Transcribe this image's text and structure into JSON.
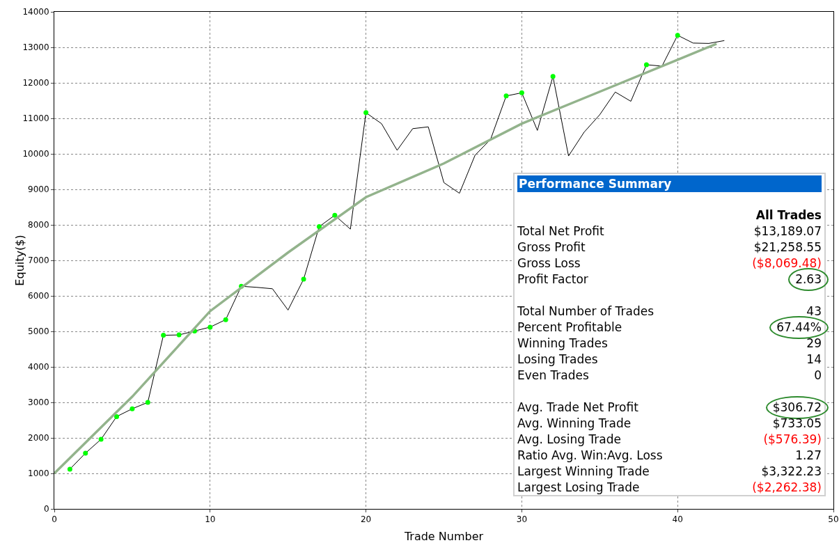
{
  "chart_data": {
    "type": "line",
    "xlabel": "Trade Number",
    "ylabel": "Equity($)",
    "xlim": [
      0,
      50
    ],
    "xticks": [
      0,
      10,
      20,
      30,
      40,
      50
    ],
    "ylim": [
      0,
      14000
    ],
    "yticks": [
      0,
      1000,
      2000,
      3000,
      4000,
      5000,
      6000,
      7000,
      8000,
      9000,
      10000,
      11000,
      12000,
      13000,
      14000
    ],
    "grid": true,
    "line_style": "solid",
    "series": [
      {
        "color": "#000000",
        "marker": "none",
        "x": [
          1,
          2,
          3,
          4,
          5,
          6,
          7,
          8,
          9,
          10,
          11,
          12,
          13,
          14,
          15,
          16,
          17,
          18,
          19,
          20,
          21,
          22,
          23,
          24,
          25,
          26,
          27,
          28,
          29,
          30,
          31,
          32,
          33,
          34,
          35,
          36,
          37,
          38,
          39,
          40,
          41,
          42,
          43
        ],
        "values": [
          1120,
          1570,
          1960,
          2600,
          2820,
          3000,
          4890,
          4900,
          5010,
          5120,
          5330,
          6270,
          6240,
          6200,
          5600,
          6470,
          7950,
          8270,
          7880,
          11160,
          10850,
          10100,
          10710,
          10760,
          9190,
          8890,
          9960,
          10410,
          11630,
          11720,
          10660,
          12180,
          9940,
          10610,
          11100,
          11740,
          11480,
          12510,
          12470,
          13340,
          13120,
          13110,
          13190
        ]
      },
      {
        "type": "scatter",
        "color": "#00ff00",
        "marker": "circle",
        "x": [
          1,
          2,
          3,
          4,
          5,
          6,
          7,
          8,
          9,
          10,
          11,
          12,
          16,
          17,
          18,
          20,
          29,
          30,
          32,
          38,
          40
        ],
        "values": [
          1120,
          1570,
          1960,
          2600,
          2820,
          3000,
          4890,
          4900,
          5010,
          5120,
          5330,
          6270,
          6470,
          7950,
          8270,
          11160,
          11630,
          11720,
          12180,
          12510,
          13340
        ]
      },
      {
        "color": "#93b38c",
        "marker": "none",
        "x": [
          0,
          5,
          10,
          15,
          20,
          25,
          30,
          35,
          40,
          42.5
        ],
        "values": [
          1000,
          3160,
          5570,
          7220,
          8780,
          9730,
          10850,
          11750,
          12650,
          13100
        ]
      }
    ],
    "annotations": [
      "Performance Summary",
      "All Trades",
      "Total Net Profit",
      "$13,189.07",
      "Gross Profit",
      "$21,258.55",
      "Gross Loss",
      "($8,069.48)",
      "Profit Factor",
      "2.63",
      "Total Number of Trades",
      "43",
      "Percent Profitable",
      "67.44%",
      "Winning Trades",
      "29",
      "Losing Trades",
      "14",
      "Even Trades",
      "0",
      "Avg. Trade Net Profit",
      "$306.72",
      "Avg. Winning Trade",
      "$733.05",
      "Avg. Losing Trade",
      "($576.39)",
      "Ratio Avg. Win:Avg. Loss",
      "1.27",
      "Largest Winning Trade",
      "$3,322.23",
      "Largest Losing Trade",
      "($2,262.38)"
    ]
  }
}
